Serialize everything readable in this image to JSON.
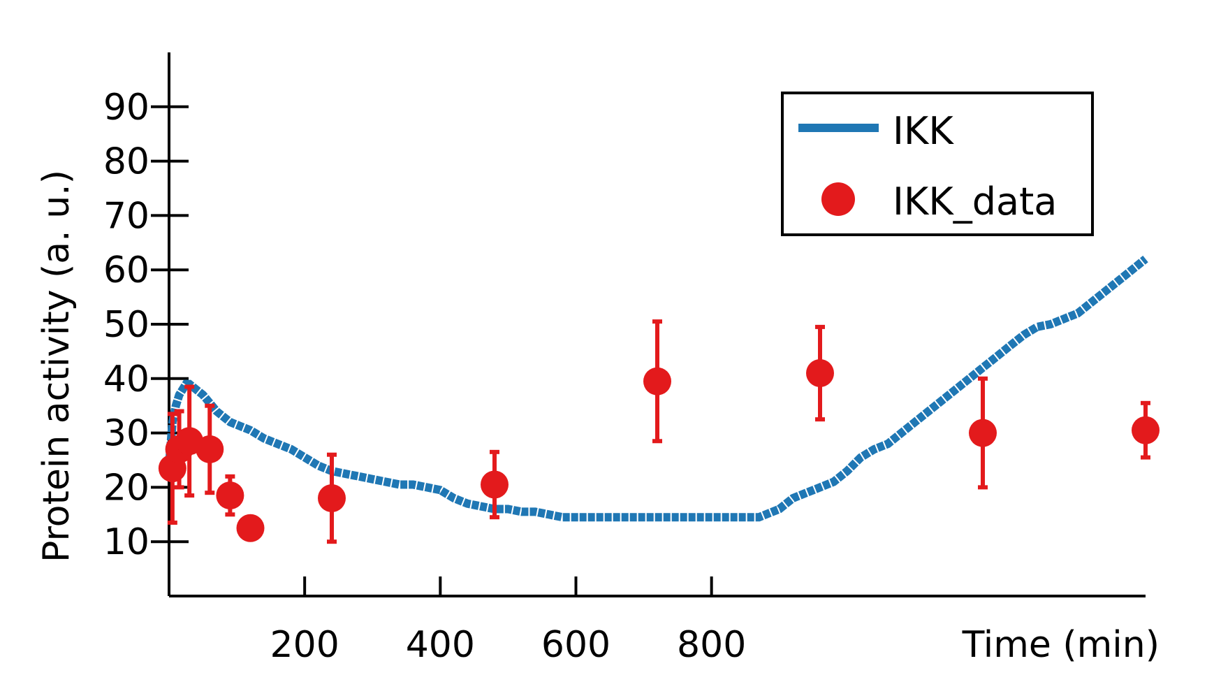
{
  "chart_data": {
    "type": "line",
    "title": "",
    "xlabel": "Time (min)",
    "ylabel": "Protein activity (a. u.)",
    "xlim": [
      0,
      1440
    ],
    "ylim": [
      0,
      100
    ],
    "xticks": [
      200,
      400,
      600,
      800
    ],
    "yticks": [
      10,
      20,
      30,
      40,
      50,
      60,
      70,
      80,
      90
    ],
    "grid": false,
    "legend_position": "top-right",
    "colors": {
      "line": "#1f77b4",
      "data": "#e31a1c",
      "axis": "#000000"
    },
    "series": [
      {
        "name": "IKK",
        "kind": "line",
        "x": [
          0,
          5,
          10,
          15,
          20,
          25,
          30,
          35,
          40,
          45,
          50,
          60,
          70,
          80,
          90,
          100,
          110,
          120,
          140,
          160,
          180,
          200,
          220,
          240,
          260,
          280,
          300,
          320,
          340,
          360,
          380,
          400,
          420,
          440,
          460,
          480,
          500,
          520,
          540,
          560,
          580,
          600,
          620,
          640,
          660,
          680,
          700,
          720,
          740,
          760,
          780,
          800,
          820,
          840,
          860,
          870,
          880,
          900,
          920,
          940,
          960,
          980,
          1000,
          1020,
          1040,
          1060,
          1080,
          1100,
          1120,
          1140,
          1160,
          1180,
          1200,
          1220,
          1240,
          1260,
          1280,
          1300,
          1320,
          1340,
          1360,
          1380,
          1400,
          1420,
          1440
        ],
        "y": [
          24,
          32,
          35,
          37,
          38,
          39,
          39,
          38.5,
          38,
          37.5,
          37,
          35.5,
          34,
          33,
          32,
          31.5,
          31,
          30.5,
          29,
          28,
          27,
          25.5,
          24,
          23,
          22.5,
          22,
          21.5,
          21,
          20.5,
          20.5,
          20,
          19.5,
          18,
          17,
          16.5,
          16,
          16,
          15.5,
          15.5,
          15,
          14.5,
          14.5,
          14.5,
          14.5,
          14.5,
          14.5,
          14.5,
          14.5,
          14.5,
          14.5,
          14.5,
          14.5,
          14.5,
          14.5,
          14.5,
          14.5,
          15,
          16,
          18,
          19,
          20,
          21,
          23,
          25.5,
          27,
          28,
          30,
          32,
          34,
          36,
          38,
          40,
          42,
          44,
          46,
          48,
          49.5,
          50,
          51,
          52,
          54,
          56,
          58,
          60,
          62
        ]
      },
      {
        "name": "IKK_data",
        "kind": "scatter",
        "x": [
          5,
          15,
          30,
          60,
          90,
          120,
          240,
          480,
          720,
          960,
          1200,
          1440
        ],
        "y": [
          23.5,
          27,
          28.5,
          27,
          18.5,
          12.5,
          18,
          20.5,
          39.5,
          41,
          30,
          30.5
        ],
        "err": [
          10,
          7,
          10,
          8,
          3.5,
          0,
          8,
          6,
          11,
          8.5,
          10,
          5
        ]
      }
    ]
  }
}
